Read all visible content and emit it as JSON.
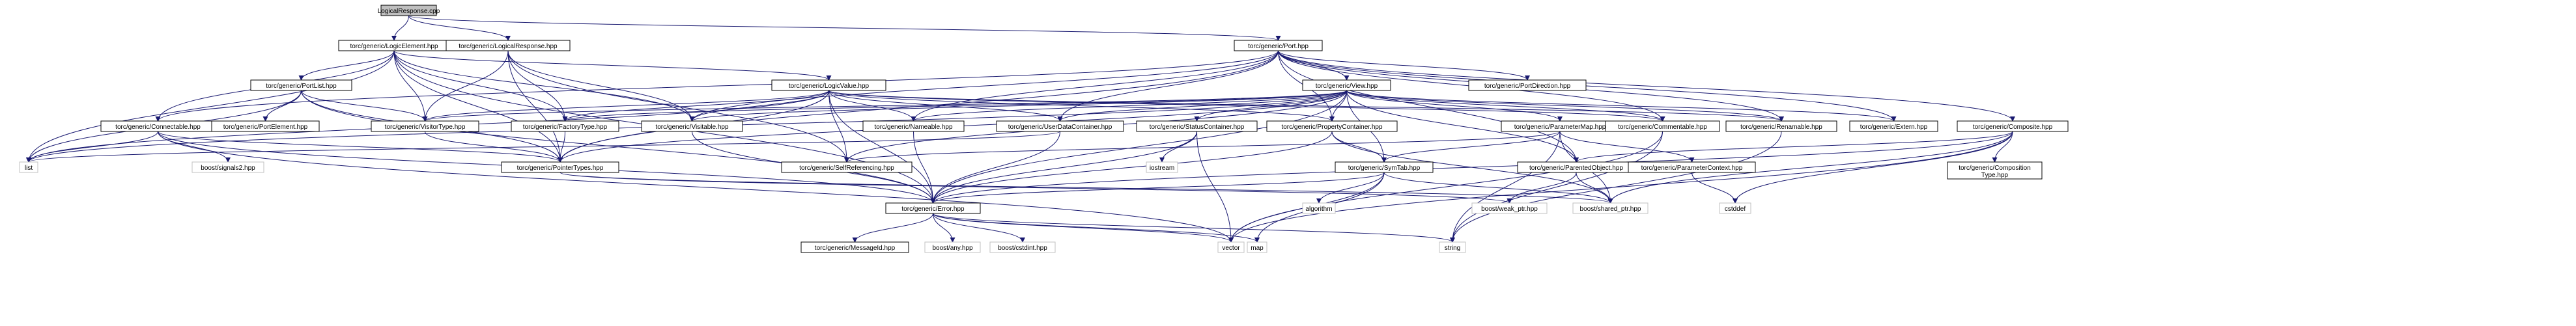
{
  "root": "LogicalResponse.cpp",
  "edge_color": "#191970",
  "nodes": [
    {
      "id": "root",
      "label": "LogicalResponse.cpp",
      "kind": "root"
    },
    {
      "id": "logicelement",
      "label": "torc/generic/LogicElement.hpp",
      "kind": "header"
    },
    {
      "id": "logicalresponse",
      "label": "torc/generic/LogicalResponse.hpp",
      "kind": "header"
    },
    {
      "id": "port",
      "label": "torc/generic/Port.hpp",
      "kind": "header"
    },
    {
      "id": "portlist",
      "label": "torc/generic/PortList.hpp",
      "kind": "header"
    },
    {
      "id": "logicvalue",
      "label": "torc/generic/LogicValue.hpp",
      "kind": "header"
    },
    {
      "id": "view",
      "label": "torc/generic/View.hpp",
      "kind": "header"
    },
    {
      "id": "portdirection",
      "label": "torc/generic/PortDirection.hpp",
      "kind": "header"
    },
    {
      "id": "connectable",
      "label": "torc/generic/Connectable.hpp",
      "kind": "header"
    },
    {
      "id": "portelement",
      "label": "torc/generic/PortElement.hpp",
      "kind": "header"
    },
    {
      "id": "visitortype",
      "label": "torc/generic/VisitorType.hpp",
      "kind": "header"
    },
    {
      "id": "factorytype",
      "label": "torc/generic/FactoryType.hpp",
      "kind": "header"
    },
    {
      "id": "visitable",
      "label": "torc/generic/Visitable.hpp",
      "kind": "header"
    },
    {
      "id": "nameable",
      "label": "torc/generic/Nameable.hpp",
      "kind": "header"
    },
    {
      "id": "userdatacontainer",
      "label": "torc/generic/UserDataContainer.hpp",
      "kind": "header"
    },
    {
      "id": "statuscontainer",
      "label": "torc/generic/StatusContainer.hpp",
      "kind": "header"
    },
    {
      "id": "propertycontainer",
      "label": "torc/generic/PropertyContainer.hpp",
      "kind": "header"
    },
    {
      "id": "parametermap",
      "label": "torc/generic/ParameterMap.hpp",
      "kind": "header"
    },
    {
      "id": "commentable",
      "label": "torc/generic/Commentable.hpp",
      "kind": "header"
    },
    {
      "id": "renamable",
      "label": "torc/generic/Renamable.hpp",
      "kind": "header"
    },
    {
      "id": "extern",
      "label": "torc/generic/Extern.hpp",
      "kind": "header"
    },
    {
      "id": "composite",
      "label": "torc/generic/Composite.hpp",
      "kind": "header"
    },
    {
      "id": "list",
      "label": "list",
      "kind": "system"
    },
    {
      "id": "signals2",
      "label": "boost/signals2.hpp",
      "kind": "system"
    },
    {
      "id": "pointertypes",
      "label": "torc/generic/PointerTypes.hpp",
      "kind": "header"
    },
    {
      "id": "selfreferencing",
      "label": "torc/generic/SelfReferencing.hpp",
      "kind": "header"
    },
    {
      "id": "iostream",
      "label": "iostream",
      "kind": "system"
    },
    {
      "id": "symtab",
      "label": "torc/generic/SymTab.hpp",
      "kind": "header"
    },
    {
      "id": "parentedobject",
      "label": "torc/generic/ParentedObject.hpp",
      "kind": "header"
    },
    {
      "id": "parametercontext",
      "label": "torc/generic/ParameterContext.hpp",
      "kind": "header"
    },
    {
      "id": "compositiontype",
      "label": [
        "torc/generic/Composition",
        "Type.hpp"
      ],
      "kind": "header"
    },
    {
      "id": "error",
      "label": "torc/generic/Error.hpp",
      "kind": "header"
    },
    {
      "id": "algorithm",
      "label": "algorithm",
      "kind": "system"
    },
    {
      "id": "weakptr",
      "label": "boost/weak_ptr.hpp",
      "kind": "system"
    },
    {
      "id": "sharedptr",
      "label": "boost/shared_ptr.hpp",
      "kind": "system"
    },
    {
      "id": "cstddef",
      "label": "cstddef",
      "kind": "system"
    },
    {
      "id": "messageid",
      "label": "torc/generic/MessageId.hpp",
      "kind": "header"
    },
    {
      "id": "any",
      "label": "boost/any.hpp",
      "kind": "system"
    },
    {
      "id": "cstdint",
      "label": "boost/cstdint.hpp",
      "kind": "system"
    },
    {
      "id": "vector",
      "label": "vector",
      "kind": "system"
    },
    {
      "id": "map",
      "label": "map",
      "kind": "system"
    },
    {
      "id": "string",
      "label": "string",
      "kind": "system"
    }
  ],
  "edges": [
    [
      "root",
      "logicelement"
    ],
    [
      "root",
      "logicalresponse"
    ],
    [
      "root",
      "port"
    ],
    [
      "logicelement",
      "portlist"
    ],
    [
      "logicelement",
      "logicvalue"
    ],
    [
      "logicelement",
      "connectable"
    ],
    [
      "logicelement",
      "visitortype"
    ],
    [
      "logicelement",
      "factorytype"
    ],
    [
      "logicelement",
      "visitable"
    ],
    [
      "logicelement",
      "pointertypes"
    ],
    [
      "logicelement",
      "list"
    ],
    [
      "logicelement",
      "error"
    ],
    [
      "logicalresponse",
      "visitortype"
    ],
    [
      "logicalresponse",
      "factorytype"
    ],
    [
      "logicalresponse",
      "visitable"
    ],
    [
      "logicalresponse",
      "pointertypes"
    ],
    [
      "logicalresponse",
      "selfreferencing"
    ],
    [
      "port",
      "view"
    ],
    [
      "port",
      "portdirection"
    ],
    [
      "port",
      "connectable"
    ],
    [
      "port",
      "composite"
    ],
    [
      "port",
      "commentable"
    ],
    [
      "port",
      "renamable"
    ],
    [
      "port",
      "extern"
    ],
    [
      "port",
      "nameable"
    ],
    [
      "port",
      "userdatacontainer"
    ],
    [
      "port",
      "propertycontainer"
    ],
    [
      "port",
      "visitable"
    ],
    [
      "port",
      "parentedobject"
    ],
    [
      "port",
      "pointertypes"
    ],
    [
      "portlist",
      "portelement"
    ],
    [
      "portlist",
      "visitortype"
    ],
    [
      "portlist",
      "list"
    ],
    [
      "portlist",
      "pointertypes"
    ],
    [
      "portlist",
      "error"
    ],
    [
      "logicvalue",
      "visitortype"
    ],
    [
      "logicvalue",
      "factorytype"
    ],
    [
      "logicvalue",
      "visitable"
    ],
    [
      "logicvalue",
      "nameable"
    ],
    [
      "logicvalue",
      "userdatacontainer"
    ],
    [
      "logicvalue",
      "propertycontainer"
    ],
    [
      "logicvalue",
      "commentable"
    ],
    [
      "logicvalue",
      "renamable"
    ],
    [
      "logicvalue",
      "pointertypes"
    ],
    [
      "logicvalue",
      "selfreferencing"
    ],
    [
      "logicvalue",
      "error"
    ],
    [
      "logicvalue",
      "list"
    ],
    [
      "view",
      "factorytype"
    ],
    [
      "view",
      "visitortype"
    ],
    [
      "view",
      "visitable"
    ],
    [
      "view",
      "nameable"
    ],
    [
      "view",
      "userdatacontainer"
    ],
    [
      "view",
      "statuscontainer"
    ],
    [
      "view",
      "propertycontainer"
    ],
    [
      "view",
      "parametermap"
    ],
    [
      "view",
      "commentable"
    ],
    [
      "view",
      "renamable"
    ],
    [
      "view",
      "extern"
    ],
    [
      "view",
      "symtab"
    ],
    [
      "view",
      "parentedobject"
    ],
    [
      "view",
      "pointertypes"
    ],
    [
      "view",
      "selfreferencing"
    ],
    [
      "view",
      "error"
    ],
    [
      "view",
      "list"
    ],
    [
      "connectable",
      "list"
    ],
    [
      "connectable",
      "signals2"
    ],
    [
      "connectable",
      "pointertypes"
    ],
    [
      "connectable",
      "error"
    ],
    [
      "connectable",
      "vector"
    ],
    [
      "visitortype",
      "pointertypes"
    ],
    [
      "factorytype",
      "pointertypes"
    ],
    [
      "visitable",
      "error"
    ],
    [
      "nameable",
      "error"
    ],
    [
      "userdatacontainer",
      "error"
    ],
    [
      "userdatacontainer",
      "list"
    ],
    [
      "statuscontainer",
      "error"
    ],
    [
      "statuscontainer",
      "iostream"
    ],
    [
      "statuscontainer",
      "vector"
    ],
    [
      "propertycontainer",
      "symtab"
    ],
    [
      "propertycontainer",
      "error"
    ],
    [
      "propertycontainer",
      "sharedptr"
    ],
    [
      "parametermap",
      "parametercontext"
    ],
    [
      "parametermap",
      "symtab"
    ],
    [
      "parametermap",
      "sharedptr"
    ],
    [
      "parametermap",
      "selfreferencing"
    ],
    [
      "parametermap",
      "string"
    ],
    [
      "commentable",
      "vector"
    ],
    [
      "commentable",
      "string"
    ],
    [
      "renamable",
      "string"
    ],
    [
      "composite",
      "compositiontype"
    ],
    [
      "composite",
      "error"
    ],
    [
      "composite",
      "vector"
    ],
    [
      "composite",
      "cstddef"
    ],
    [
      "composite",
      "sharedptr"
    ],
    [
      "composite",
      "parentedobject"
    ],
    [
      "pointertypes",
      "weakptr"
    ],
    [
      "pointertypes",
      "sharedptr"
    ],
    [
      "symtab",
      "algorithm"
    ],
    [
      "symtab",
      "map"
    ],
    [
      "symtab",
      "vector"
    ],
    [
      "symtab",
      "sharedptr"
    ],
    [
      "symtab",
      "error"
    ],
    [
      "parentedobject",
      "weakptr"
    ],
    [
      "parentedobject",
      "sharedptr"
    ],
    [
      "parametercontext",
      "cstddef"
    ],
    [
      "error",
      "messageid"
    ],
    [
      "error",
      "any"
    ],
    [
      "error",
      "cstdint"
    ],
    [
      "error",
      "vector"
    ],
    [
      "error",
      "map"
    ],
    [
      "error",
      "string"
    ]
  ]
}
